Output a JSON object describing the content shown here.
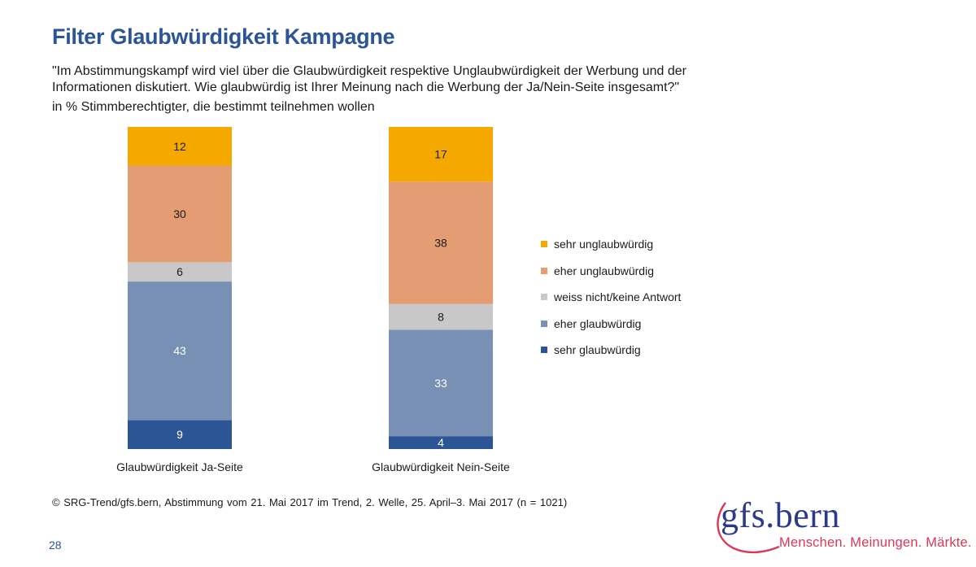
{
  "title": "Filter Glaubwürdigkeit Kampagne",
  "question": "\"Im Abstimmungskampf wird viel über die Glaubwürdigkeit respektive Unglaubwürdigkeit der Werbung und der Informationen diskutiert. Wie glaubwürdig ist Ihrer Meinung nach die Werbung der Ja/Nein-Seite insgesamt?\"",
  "basis": "in % Stimmberechtigter, die bestimmt teilnehmen wollen",
  "source": "© SRG-Trend/gfs.bern,  Abstimmung vom 21. Mai 2017 im Trend, 2. Welle, 25. April–3. Mai 2017 (n = 1021)",
  "page_number": "28",
  "logo": {
    "name": "gfs.bern",
    "tagline": "Menschen. Meinungen. Märkte."
  },
  "colors": {
    "title": "#2b5595",
    "sehr_unglaubwuerdig": "#f5a800",
    "eher_unglaubwuerdig": "#e49c72",
    "weiss_nicht": "#c8c8c8",
    "eher_glaubwuerdig": "#7890b4",
    "sehr_glaubwuerdig": "#2b5595"
  },
  "chart_data": {
    "type": "bar",
    "stacked": true,
    "orientation": "vertical",
    "percent_stacked": true,
    "categories": [
      "Glaubwürdigkeit Ja-Seite",
      "Glaubwürdigkeit Nein-Seite"
    ],
    "series": [
      {
        "name": "sehr glaubwürdig",
        "values": [
          9,
          4
        ],
        "color": "#2b5595",
        "label_color": "#ffffff"
      },
      {
        "name": "eher glaubwürdig",
        "values": [
          43,
          33
        ],
        "color": "#7890b4",
        "label_color": "#ffffff"
      },
      {
        "name": "weiss nicht/keine Antwort",
        "values": [
          6,
          8
        ],
        "color": "#c8c8c8",
        "label_color": "#1a1a1a"
      },
      {
        "name": "eher unglaubwürdig",
        "values": [
          30,
          38
        ],
        "color": "#e49c72",
        "label_color": "#1a1a1a"
      },
      {
        "name": "sehr unglaubwürdig",
        "values": [
          12,
          17
        ],
        "color": "#f5a800",
        "label_color": "#1a1a1a"
      }
    ],
    "legend": {
      "position": "right",
      "order": [
        "sehr unglaubwürdig",
        "eher unglaubwürdig",
        "weiss nicht/keine Antwort",
        "eher glaubwürdig",
        "sehr glaubwürdig"
      ]
    },
    "data_labels": true,
    "ylim": [
      0,
      100
    ],
    "grid": false,
    "xlabel": "",
    "ylabel": ""
  }
}
